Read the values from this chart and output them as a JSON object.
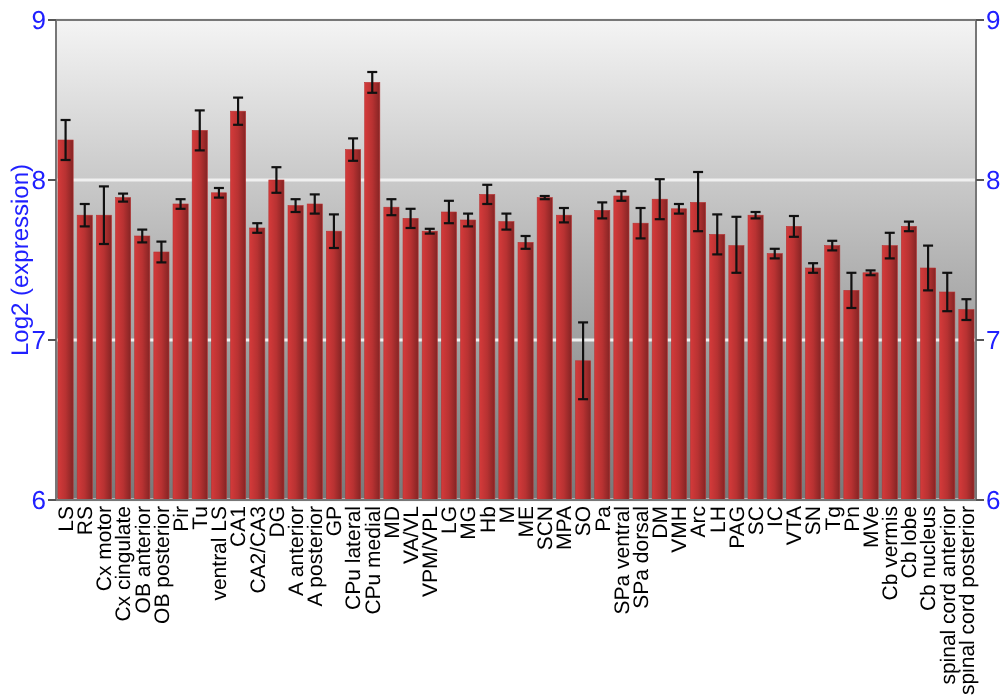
{
  "chart_data": {
    "type": "bar",
    "ylabel": "Log2 (expression)",
    "categories": [
      "LS",
      "RS",
      "Cx motor",
      "Cx cingulate",
      "OB anterior",
      "OB posterior",
      "Pir",
      "Tu",
      "ventral LS",
      "CA1",
      "CA2/CA3",
      "DG",
      "A anterior",
      "A posterior",
      "GP",
      "CPu lateral",
      "CPu medial",
      "MD",
      "VA/VL",
      "VPM/VPL",
      "LG",
      "MG",
      "Hb",
      "M",
      "ME",
      "SCN",
      "MPA",
      "SO",
      "Pa",
      "SPa ventral",
      "SPa dorsal",
      "DM",
      "VMH",
      "Arc",
      "LH",
      "PAG",
      "SC",
      "IC",
      "VTA",
      "SN",
      "Tg",
      "Pn",
      "MVe",
      "Cb vermis",
      "Cb lobe",
      "Cb nucleus",
      "spinal cord anterior",
      "spinal cord posterior"
    ],
    "values": [
      8.25,
      7.78,
      7.78,
      7.89,
      7.65,
      7.55,
      7.85,
      8.31,
      7.92,
      8.43,
      7.7,
      8.0,
      7.84,
      7.85,
      7.68,
      8.19,
      8.61,
      7.83,
      7.76,
      7.68,
      7.8,
      7.75,
      7.91,
      7.74,
      7.61,
      7.89,
      7.78,
      6.87,
      7.81,
      7.9,
      7.73,
      7.88,
      7.82,
      7.86,
      7.66,
      7.59,
      7.78,
      7.54,
      7.71,
      7.45,
      7.59,
      7.31,
      7.42,
      7.59,
      7.71,
      7.45,
      7.3,
      7.19
    ],
    "errors": [
      0.125,
      0.07,
      [
        7.6,
        7.96
      ],
      0.025,
      0.04,
      0.065,
      0.03,
      0.125,
      0.03,
      0.085,
      0.03,
      0.08,
      0.04,
      0.06,
      0.105,
      0.07,
      0.065,
      0.05,
      0.06,
      0.015,
      0.07,
      0.04,
      0.06,
      0.05,
      0.04,
      0.01,
      0.045,
      0.24,
      0.05,
      0.03,
      0.095,
      0.125,
      0.03,
      [
        7.68,
        8.05
      ],
      0.125,
      [
        7.42,
        7.77
      ],
      0.02,
      0.03,
      0.065,
      0.03,
      0.03,
      0.11,
      0.015,
      0.08,
      0.03,
      0.14,
      0.12,
      0.065
    ],
    "color": "#b83232",
    "ylim": [
      6,
      9
    ],
    "yticks": [
      6,
      7,
      8,
      9
    ],
    "y2lim": [
      6,
      9
    ],
    "y2ticks": [
      6,
      7,
      8,
      9
    ],
    "grid": "y"
  }
}
